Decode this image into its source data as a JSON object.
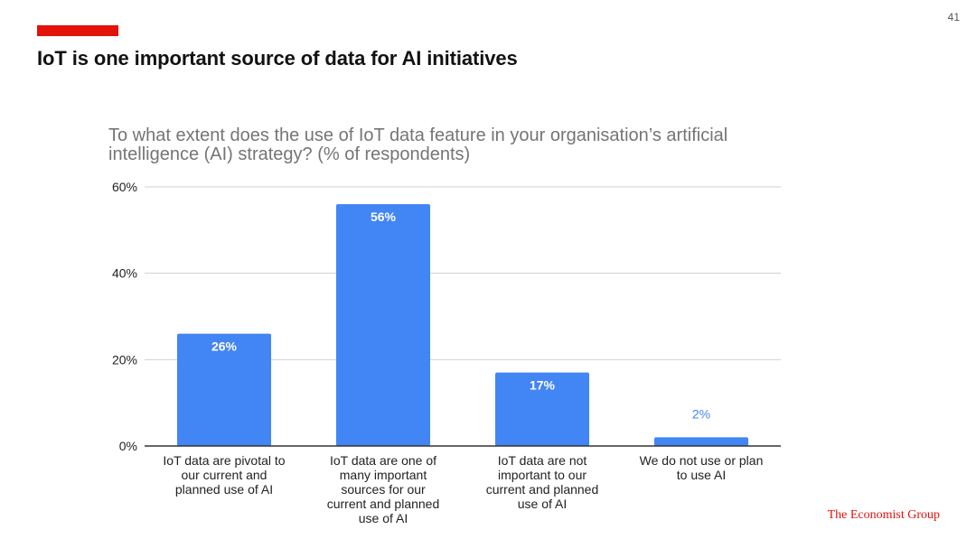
{
  "slide": {
    "page_number": "41",
    "title": "IoT is one important source of data for AI initiatives",
    "brand": "The Economist Group"
  },
  "colors": {
    "accent": "#e3120b",
    "bar": "#4285f4",
    "grid": "#d0d0d0",
    "axis": "#333333"
  },
  "chart_data": {
    "type": "bar",
    "title": "To what extent does the use of IoT data feature in your organisation’s artificial intelligence (AI) strategy? (% of respondents)",
    "xlabel": "",
    "ylabel": "",
    "ylim": [
      0,
      60
    ],
    "yticks": [
      0,
      20,
      40,
      60
    ],
    "ytick_labels": [
      "0%",
      "20%",
      "40%",
      "60%"
    ],
    "categories": [
      [
        "IoT data are pivotal to",
        "our current and",
        "planned use of AI"
      ],
      [
        "IoT data are one of",
        "many important",
        "sources for our",
        "current and planned",
        "use of AI"
      ],
      [
        "IoT data are not",
        "important to our",
        "current and planned",
        "use of AI"
      ],
      [
        "We do not use or plan",
        "to use AI"
      ]
    ],
    "values": [
      26,
      56,
      17,
      2
    ],
    "value_labels": [
      "26%",
      "56%",
      "17%",
      "2%"
    ],
    "grid": true,
    "legend": "none"
  }
}
